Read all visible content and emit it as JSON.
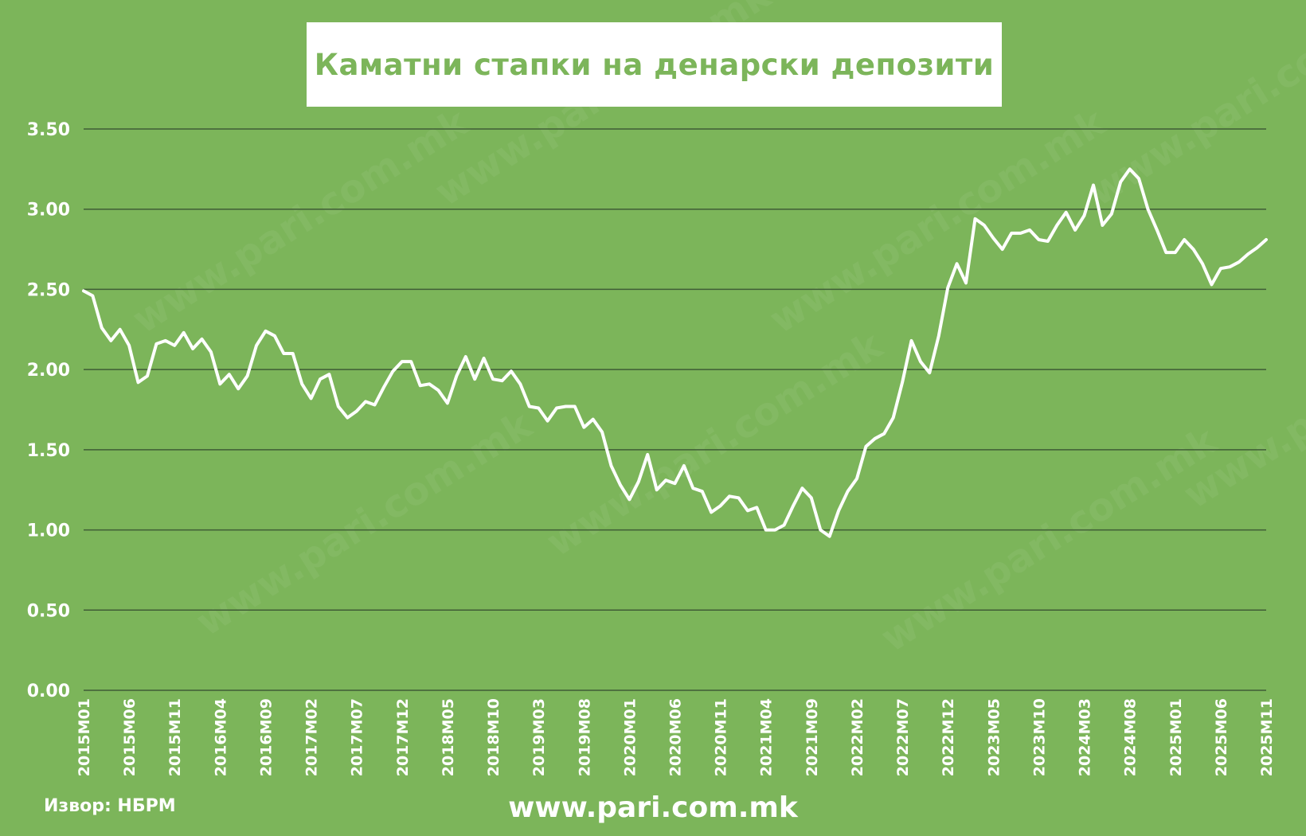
{
  "source_label": "Извор: НБРМ",
  "website": "www.pari.com.mk",
  "colors": {
    "background": "#7cb55a",
    "line": "#ffffff",
    "gridline": "#3f5c36",
    "title_bg": "#ffffff",
    "title_text": "#7cb55a"
  },
  "chart_data": {
    "type": "line",
    "title": "Каматни стапки на денарски депозити",
    "xlabel": "",
    "ylabel": "",
    "ylim": [
      0,
      3.5
    ],
    "yticks": [
      "0.00",
      "0.50",
      "1.00",
      "1.50",
      "2.00",
      "2.50",
      "3.00",
      "3.50"
    ],
    "grid": true,
    "legend": "none",
    "x_start": "2015M01",
    "x_end": "2025M11",
    "x_tick_labels": [
      "2015M01",
      "2015M06",
      "2015M11",
      "2016M04",
      "2016M09",
      "2017M02",
      "2017M07",
      "2017M12",
      "2018M05",
      "2018M10",
      "2019M03",
      "2019M08",
      "2020M01",
      "2020M06",
      "2020M11",
      "2021M04",
      "2021M09",
      "2022M02",
      "2022M07",
      "2022M12",
      "2023M05",
      "2023M10",
      "2024M03",
      "2024M08",
      "2025M01",
      "2025M06",
      "2025M11"
    ],
    "series": [
      {
        "values": [
          2.49,
          2.46,
          2.26,
          2.18,
          2.25,
          2.15,
          1.92,
          1.96,
          2.16,
          2.18,
          2.15,
          2.23,
          2.13,
          2.19,
          2.11,
          1.91,
          1.97,
          1.88,
          1.96,
          2.15,
          2.24,
          2.21,
          2.1,
          2.1,
          1.91,
          1.82,
          1.94,
          1.97,
          1.77,
          1.7,
          1.74,
          1.8,
          1.78,
          1.89,
          1.99,
          2.05,
          2.05,
          1.9,
          1.91,
          1.87,
          1.79,
          1.96,
          2.08,
          1.94,
          2.07,
          1.94,
          1.93,
          1.99,
          1.91,
          1.77,
          1.76,
          1.68,
          1.76,
          1.77,
          1.77,
          1.64,
          1.69,
          1.61,
          1.4,
          1.28,
          1.19,
          1.3,
          1.47,
          1.25,
          1.31,
          1.29,
          1.4,
          1.26,
          1.24,
          1.11,
          1.15,
          1.21,
          1.2,
          1.12,
          1.14,
          1.0,
          1.0,
          1.03,
          1.15,
          1.26,
          1.2,
          1.0,
          0.96,
          1.12,
          1.24,
          1.32,
          1.52,
          1.57,
          1.6,
          1.7,
          1.92,
          2.18,
          2.05,
          1.98,
          2.21,
          2.51,
          2.66,
          2.54,
          2.94,
          2.9,
          2.82,
          2.75,
          2.85,
          2.85,
          2.87,
          2.81,
          2.8,
          2.9,
          2.98,
          2.87,
          2.96,
          3.15,
          2.9,
          2.97,
          3.17,
          3.25,
          3.19,
          3.0,
          2.87,
          2.73,
          2.73,
          2.81,
          2.75,
          2.66,
          2.53,
          2.63,
          2.64,
          2.67,
          2.72,
          2.76,
          2.81
        ]
      }
    ]
  }
}
